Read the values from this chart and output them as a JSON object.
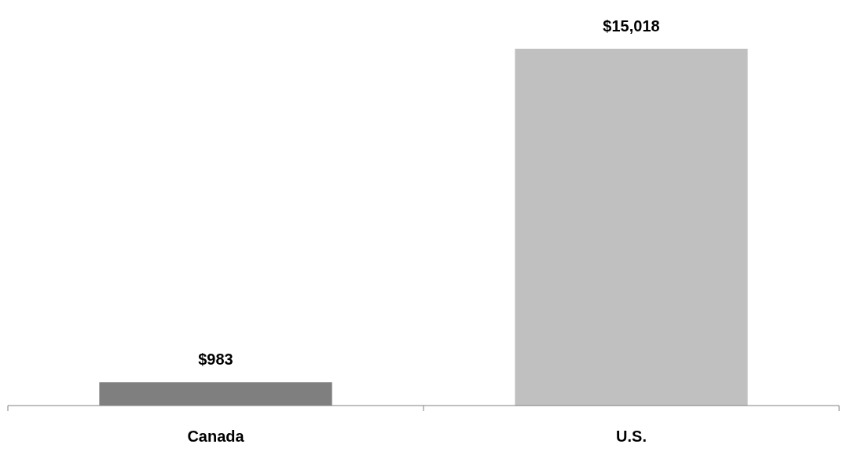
{
  "chart_data": {
    "type": "bar",
    "categories": [
      "Canada",
      "U.S."
    ],
    "values": [
      983,
      15018
    ],
    "colors": [
      "#7f7f7f",
      "#c0c0c0"
    ],
    "value_labels": [
      "$983",
      "$15,018"
    ]
  }
}
